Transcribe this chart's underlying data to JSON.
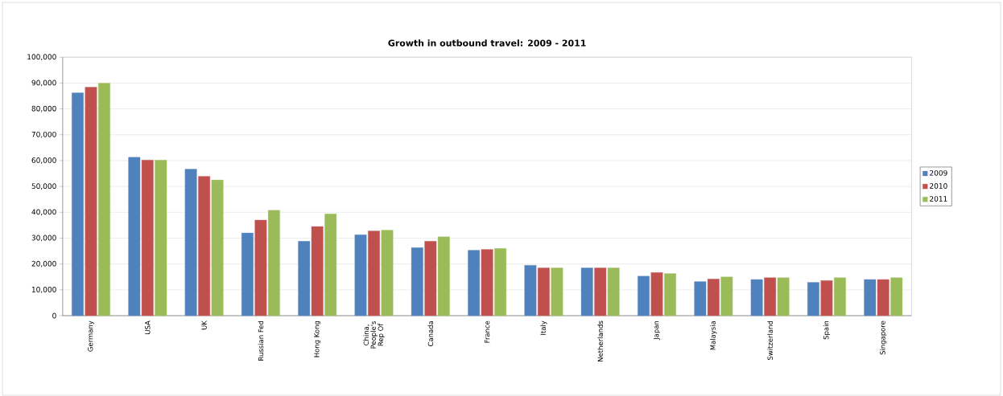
{
  "chart_data": {
    "type": "bar",
    "title": "Growth in outbound travel: 2009 - 2011",
    "categories": [
      "Germany",
      "USA",
      "UK",
      "Russian Fed",
      "Hong Kong",
      "China, People's Rep Of",
      "Canada",
      "France",
      "Italy",
      "Netherlands",
      "Japan",
      "Malaysia",
      "Switzerland",
      "Spain",
      "Singapore"
    ],
    "series": [
      {
        "name": "2009",
        "color": "#4f81bd",
        "values": [
          86200,
          61300,
          56700,
          32000,
          28800,
          31300,
          26300,
          25300,
          19500,
          18500,
          15300,
          13200,
          14000,
          12900,
          14000
        ]
      },
      {
        "name": "2010",
        "color": "#c0504d",
        "values": [
          88400,
          60200,
          53900,
          37000,
          34500,
          32800,
          28800,
          25600,
          18500,
          18500,
          16700,
          14200,
          14700,
          13600,
          14000
        ]
      },
      {
        "name": "2011",
        "color": "#9bbb59",
        "values": [
          90000,
          60200,
          52500,
          40800,
          39400,
          33100,
          30500,
          26000,
          18500,
          18500,
          16300,
          15000,
          14700,
          14700,
          14700
        ]
      }
    ],
    "ylim": [
      0,
      100000
    ],
    "yticks": [
      {
        "value": 0,
        "label": "0"
      },
      {
        "value": 10000,
        "label": "10,000"
      },
      {
        "value": 20000,
        "label": "20,000"
      },
      {
        "value": 30000,
        "label": "30,000"
      },
      {
        "value": 40000,
        "label": "40,000"
      },
      {
        "value": 50000,
        "label": "50,000"
      },
      {
        "value": 60000,
        "label": "60,000"
      },
      {
        "value": 70000,
        "label": "70,000"
      },
      {
        "value": 80000,
        "label": "80,000"
      },
      {
        "value": 90000,
        "label": "90,000"
      },
      {
        "value": 100000,
        "label": "100,000"
      }
    ],
    "grid": "y",
    "legend": "right"
  }
}
